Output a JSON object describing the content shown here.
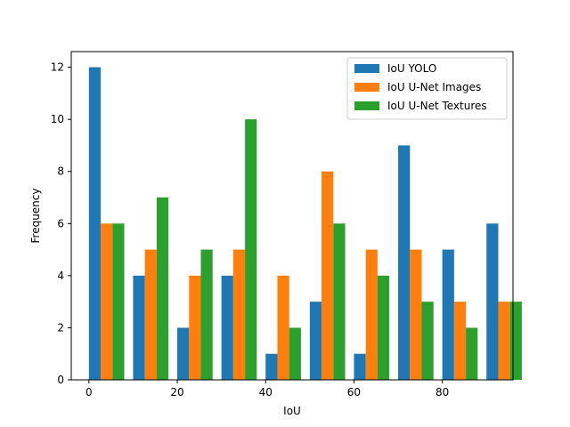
{
  "chart_data": {
    "type": "bar",
    "title": "",
    "xlabel": "IoU",
    "ylabel": "Frequency",
    "xlim": [
      -4,
      96
    ],
    "ylim": [
      0,
      12.6
    ],
    "xticks": [
      0,
      20,
      40,
      60,
      80
    ],
    "yticks": [
      0,
      2,
      4,
      6,
      8,
      10,
      12
    ],
    "bin_edges": [
      0,
      10,
      20,
      30,
      40,
      50,
      60,
      70,
      80,
      90,
      100
    ],
    "grid": false,
    "legend_position": "top-right",
    "series": [
      {
        "name": "IoU YOLO",
        "color": "#1f77b4",
        "values": [
          12,
          4,
          2,
          4,
          1,
          3,
          1,
          9,
          5,
          6
        ]
      },
      {
        "name": "IoU U-Net Images",
        "color": "#ff7f0e",
        "values": [
          6,
          5,
          4,
          5,
          4,
          8,
          5,
          5,
          3,
          3
        ]
      },
      {
        "name": "IoU U-Net Textures",
        "color": "#2ca02c",
        "values": [
          6,
          7,
          5,
          10,
          2,
          6,
          4,
          3,
          2,
          3
        ]
      }
    ]
  }
}
